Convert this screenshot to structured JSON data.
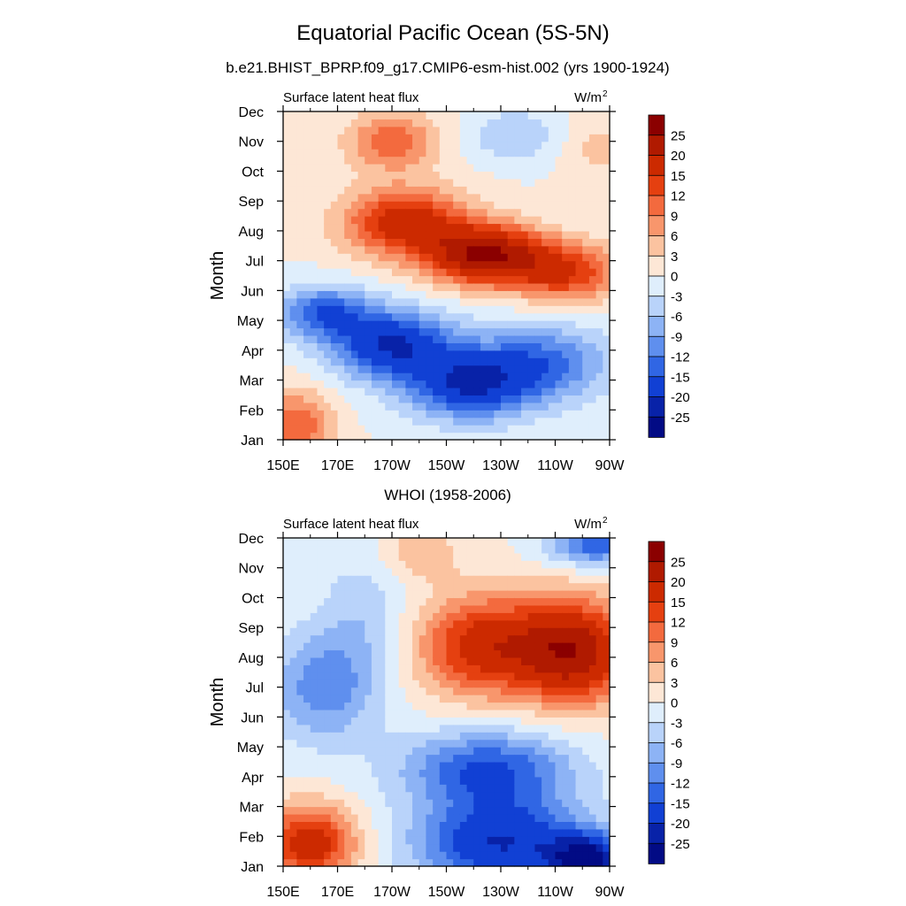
{
  "figure": {
    "title": "Equatorial Pacific Ocean (5S-5N)",
    "subtitle": "b.e21.BHIST_BPRP.f09_g17.CMIP6-esm-hist.002 (yrs 1900-1924)"
  },
  "chart_data": [
    {
      "type": "heatmap",
      "panel_title": "",
      "left_label": "Surface latent heat flux",
      "units_label": "W/m",
      "units_superscript": "2",
      "xlabel": "",
      "ylabel": "Month",
      "x_ticks": [
        "150E",
        "170E",
        "170W",
        "150W",
        "130W",
        "110W",
        "90W"
      ],
      "y_ticks": [
        "Jan",
        "Feb",
        "Mar",
        "Apr",
        "May",
        "Jun",
        "Jul",
        "Aug",
        "Sep",
        "Oct",
        "Nov",
        "Dec"
      ],
      "xlim": [
        150,
        270
      ],
      "ylim": [
        1,
        12
      ],
      "colorbar_levels": [
        "25",
        "20",
        "15",
        "12",
        "9",
        "6",
        "3",
        "0",
        "-3",
        "-6",
        "-9",
        "-12",
        "-15",
        "-20",
        "-25"
      ],
      "features": [
        {
          "x": 155,
          "y": 1.4,
          "value": 12,
          "sx": 9,
          "sy": 0.9
        },
        {
          "x": 165,
          "y": 5.3,
          "value": -14,
          "sx": 12,
          "sy": 0.6
        },
        {
          "x": 190,
          "y": 4.2,
          "value": -20,
          "sx": 16,
          "sy": 0.8
        },
        {
          "x": 218,
          "y": 2.8,
          "value": -18,
          "sx": 16,
          "sy": 0.8
        },
        {
          "x": 245,
          "y": 3.6,
          "value": -13,
          "sx": 18,
          "sy": 0.9
        },
        {
          "x": 195,
          "y": 8.3,
          "value": 18,
          "sx": 16,
          "sy": 0.8
        },
        {
          "x": 225,
          "y": 7.2,
          "value": 25,
          "sx": 15,
          "sy": 0.7
        },
        {
          "x": 255,
          "y": 6.6,
          "value": 14,
          "sx": 14,
          "sy": 0.7
        },
        {
          "x": 190,
          "y": 11,
          "value": 11,
          "sx": 12,
          "sy": 0.7
        },
        {
          "x": 235,
          "y": 11.2,
          "value": -6,
          "sx": 12,
          "sy": 0.6
        },
        {
          "x": 265,
          "y": 10.8,
          "value": 4,
          "sx": 9,
          "sy": 0.8
        }
      ]
    },
    {
      "type": "heatmap",
      "panel_title": "WHOI (1958-2006)",
      "left_label": "Surface latent heat flux",
      "units_label": "W/m",
      "units_superscript": "2",
      "xlabel": "",
      "ylabel": "Month",
      "x_ticks": [
        "150E",
        "170E",
        "170W",
        "150W",
        "130W",
        "110W",
        "90W"
      ],
      "y_ticks": [
        "Jan",
        "Feb",
        "Mar",
        "Apr",
        "May",
        "Jun",
        "Jul",
        "Aug",
        "Sep",
        "Oct",
        "Nov",
        "Dec"
      ],
      "xlim": [
        150,
        270
      ],
      "ylim": [
        1,
        12
      ],
      "colorbar_levels": [
        "25",
        "20",
        "15",
        "12",
        "9",
        "6",
        "3",
        "0",
        "-3",
        "-6",
        "-9",
        "-12",
        "-15",
        "-20",
        "-25"
      ],
      "features": [
        {
          "x": 160,
          "y": 1.8,
          "value": 18,
          "sx": 12,
          "sy": 0.9
        },
        {
          "x": 165,
          "y": 7,
          "value": -11,
          "sx": 14,
          "sy": 1.3
        },
        {
          "x": 180,
          "y": 9.5,
          "value": -5,
          "sx": 12,
          "sy": 1.5
        },
        {
          "x": 230,
          "y": 1.8,
          "value": -20,
          "sx": 22,
          "sy": 1.1
        },
        {
          "x": 262,
          "y": 1.2,
          "value": -25,
          "sx": 10,
          "sy": 0.6
        },
        {
          "x": 225,
          "y": 4.3,
          "value": -15,
          "sx": 22,
          "sy": 0.9
        },
        {
          "x": 225,
          "y": 8.4,
          "value": 18,
          "sx": 18,
          "sy": 1.2
        },
        {
          "x": 258,
          "y": 8.2,
          "value": 22,
          "sx": 14,
          "sy": 1.2
        },
        {
          "x": 265,
          "y": 11.8,
          "value": -14,
          "sx": 12,
          "sy": 0.5
        },
        {
          "x": 200,
          "y": 11.5,
          "value": 6,
          "sx": 10,
          "sy": 0.6
        }
      ]
    }
  ]
}
